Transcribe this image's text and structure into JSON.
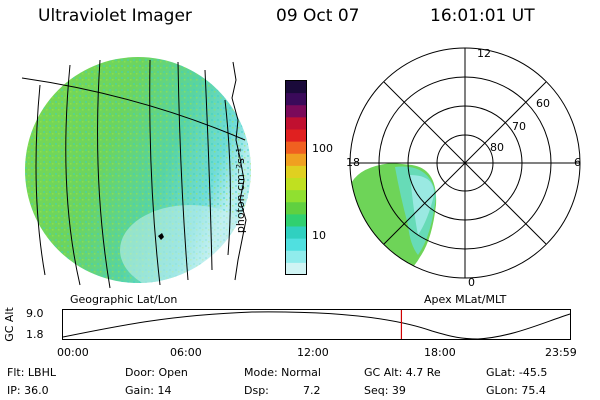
{
  "header": {
    "instrument": "Ultraviolet Imager",
    "date": "09 Oct 07",
    "time": "16:01:01 UT"
  },
  "colorbar": {
    "unit_label": "photon cm⁻²s⁻¹",
    "ticks": [
      "100",
      "10"
    ],
    "colors": [
      "#1a0a3a",
      "#3a0a5a",
      "#7a0a5a",
      "#c01030",
      "#e02020",
      "#f06020",
      "#f0a020",
      "#e0d020",
      "#c0e020",
      "#90e030",
      "#60d040",
      "#30d070",
      "#30d0c0",
      "#50e0e0",
      "#90ecec",
      "#d0f4f4"
    ]
  },
  "left_map": {
    "caption": "Geographic Lat/Lon"
  },
  "right_map": {
    "caption": "Apex MLat/MLT",
    "mlt_labels": [
      "12",
      "18",
      "6",
      "0"
    ],
    "lat_labels": [
      "60",
      "70",
      "80"
    ]
  },
  "timeline": {
    "ylabel": "GC Alt",
    "ymax": "9.0",
    "ymin": "1.8",
    "x_ticks": [
      "00:00",
      "06:00",
      "12:00",
      "18:00",
      "23:59"
    ],
    "current_time_hours": 16.02
  },
  "footer": {
    "row1": {
      "flt": "Flt: LBHL",
      "door": "Door: Open",
      "mode": "Mode: Normal",
      "gcalt": "GC Alt: 4.7 Re",
      "glat": "GLat: -45.5"
    },
    "row2": {
      "ip": "IP: 36.0",
      "gain": "Gain: 14",
      "dsp_label": "Dsp:",
      "dsp_value": "7.2",
      "seq": "Seq: 39",
      "glon": "GLon: 75.4"
    }
  }
}
